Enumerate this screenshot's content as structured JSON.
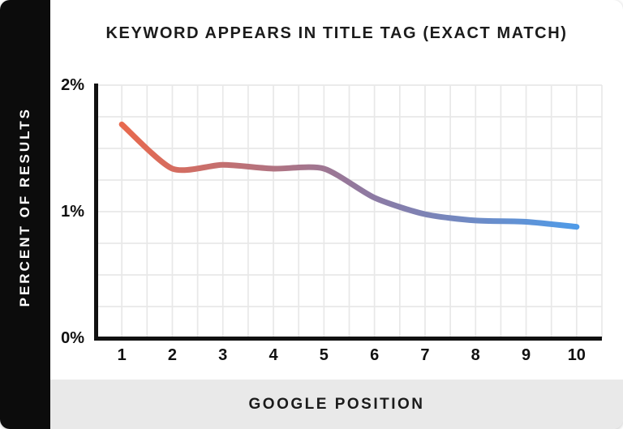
{
  "chart_data": {
    "type": "line",
    "title": "KEYWORD APPEARS IN TITLE TAG (EXACT MATCH)",
    "xlabel": "GOOGLE POSITION",
    "ylabel": "PERCENT OF RESULTS",
    "x": [
      1,
      2,
      3,
      4,
      5,
      6,
      7,
      8,
      9,
      10
    ],
    "series": [
      {
        "name": "Percent of results",
        "values": [
          1.69,
          1.34,
          1.37,
          1.34,
          1.34,
          1.11,
          0.98,
          0.93,
          0.92,
          0.88
        ]
      }
    ],
    "xlim": [
      0.5,
      10.5
    ],
    "ylim": [
      0,
      2
    ],
    "x_tick_labels": [
      "1",
      "2",
      "3",
      "4",
      "5",
      "6",
      "7",
      "8",
      "9",
      "10"
    ],
    "y_tick_labels": [
      "0%",
      "1%",
      "2%"
    ],
    "grid": {
      "show": true,
      "minor_x_step": 0.5,
      "minor_y_step": 0.25,
      "color": "#e8e8e8"
    },
    "legend": "none",
    "line": {
      "width": 7,
      "gradient": [
        "#E8694E",
        "#8D7AA3",
        "#4F9BE8"
      ],
      "gradient_stops": [
        0,
        0.55,
        1
      ],
      "smoothing": 0.12
    }
  },
  "colors": {
    "card_bg": "#ffffff",
    "sidebar_bg": "#0c0c0c",
    "sidebar_text": "#ffffff",
    "footer_bg": "#e9e9e9",
    "axis": "#111111",
    "title_text": "#1b1b1b",
    "grid": "#e8e8e8"
  }
}
